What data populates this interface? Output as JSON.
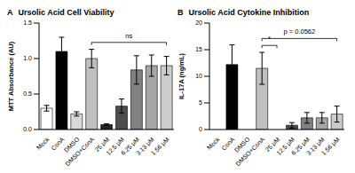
{
  "chart_data": [
    {
      "type": "bar",
      "panel_label": "A",
      "title": "Ursolic Acid Cell Viability",
      "y_label": "MTT Absorbance (AU)",
      "categories": [
        "Mock",
        "ConA",
        "DMSO",
        "DMSO+ConA",
        "25 μM",
        "12.5 μM",
        "6.25 μM",
        "3.13 μM",
        "1.56 μM"
      ],
      "values": [
        0.3,
        1.1,
        0.22,
        1.0,
        0.07,
        0.33,
        0.84,
        0.9,
        0.9
      ],
      "errors": [
        0.04,
        0.2,
        0.03,
        0.13,
        0.01,
        0.1,
        0.2,
        0.15,
        0.13
      ],
      "colors": [
        "#ffffff",
        "#000000",
        "#d9d9d9",
        "#bfbfbf",
        "#262626",
        "#4d4d4d",
        "#808080",
        "#a6a6a6",
        "#cccccc"
      ],
      "ylim": [
        0,
        1.5
      ],
      "yticks": [
        {
          "value": 0,
          "label": "0.0"
        },
        {
          "value": 0.5,
          "label": "0.5"
        },
        {
          "value": 1,
          "label": "1.0"
        },
        {
          "value": 1.5,
          "label": "1.5"
        }
      ],
      "grid": false,
      "annotations": [
        {
          "text": "ns",
          "from": "DMSO+ConA",
          "to": "1.56 μM"
        }
      ]
    },
    {
      "type": "bar",
      "panel_label": "B",
      "title": "Ursolic Acid Cytokine Inhibition",
      "y_label": "IL-17A (ng/mL)",
      "categories": [
        "Mock",
        "ConA",
        "DMSO",
        "DMSO+ConA",
        "25 μM",
        "12.5 μM",
        "6.25 μM",
        "3.13 μM",
        "1.56 μM"
      ],
      "values": [
        0,
        12.2,
        0,
        11.5,
        0,
        0.8,
        2.2,
        2.2,
        2.9
      ],
      "errors": [
        0,
        3.7,
        0,
        3,
        0,
        0.5,
        1,
        1,
        1.5
      ],
      "colors": [
        "#ffffff",
        "#000000",
        "#d9d9d9",
        "#bfbfbf",
        "#262626",
        "#4d4d4d",
        "#808080",
        "#a6a6a6",
        "#cccccc"
      ],
      "ylim": [
        0,
        20
      ],
      "yticks": [
        0,
        5,
        10,
        15,
        20
      ],
      "grid": false,
      "annotations": [
        {
          "text": "*",
          "from": "DMSO+ConA",
          "to": "25 μM"
        },
        {
          "text": "p = 0.0562",
          "from": "DMSO+ConA",
          "to": "1.56 μM"
        }
      ]
    }
  ]
}
